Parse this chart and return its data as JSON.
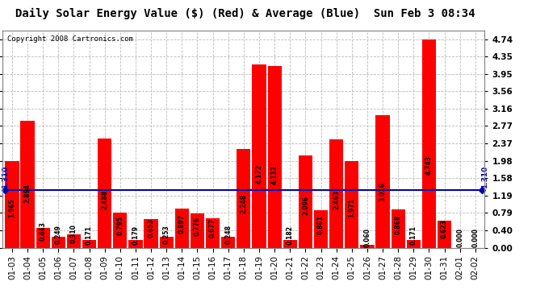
{
  "title": "Daily Solar Energy Value ($) (Red) & Average (Blue)  Sun Feb 3 08:34",
  "copyright": "Copyright 2008 Cartronics.com",
  "average": 1.31,
  "avg_label": "1.310",
  "categories": [
    "01-03",
    "01-04",
    "01-05",
    "01-06",
    "01-07",
    "01-08",
    "01-09",
    "01-10",
    "01-11",
    "01-12",
    "01-13",
    "01-14",
    "01-15",
    "01-16",
    "01-17",
    "01-18",
    "01-19",
    "01-20",
    "01-21",
    "01-22",
    "01-23",
    "01-24",
    "01-25",
    "01-26",
    "01-27",
    "01-28",
    "01-29",
    "01-30",
    "01-31",
    "02-01",
    "02-02"
  ],
  "values": [
    1.965,
    2.894,
    0.443,
    0.249,
    0.31,
    0.171,
    2.488,
    0.795,
    0.179,
    0.653,
    0.253,
    0.897,
    0.776,
    0.677,
    0.248,
    2.248,
    4.172,
    4.132,
    0.182,
    2.096,
    0.861,
    2.463,
    1.971,
    0.06,
    3.016,
    0.868,
    0.171,
    4.743,
    0.623,
    0.0,
    0.0
  ],
  "yticks": [
    0.0,
    0.4,
    0.79,
    1.19,
    1.58,
    1.98,
    2.37,
    2.77,
    3.16,
    3.56,
    3.95,
    4.35,
    4.74
  ],
  "ymax": 4.95,
  "bar_color": "#FF0000",
  "line_color": "#0000BB",
  "bg_color": "#FFFFFF",
  "grid_color": "#BBBBBB",
  "text_color": "#000000",
  "title_fontsize": 10,
  "copyright_fontsize": 6.5,
  "tick_fontsize": 7.5,
  "value_fontsize": 5.5,
  "avg_label_fontsize": 6.5
}
